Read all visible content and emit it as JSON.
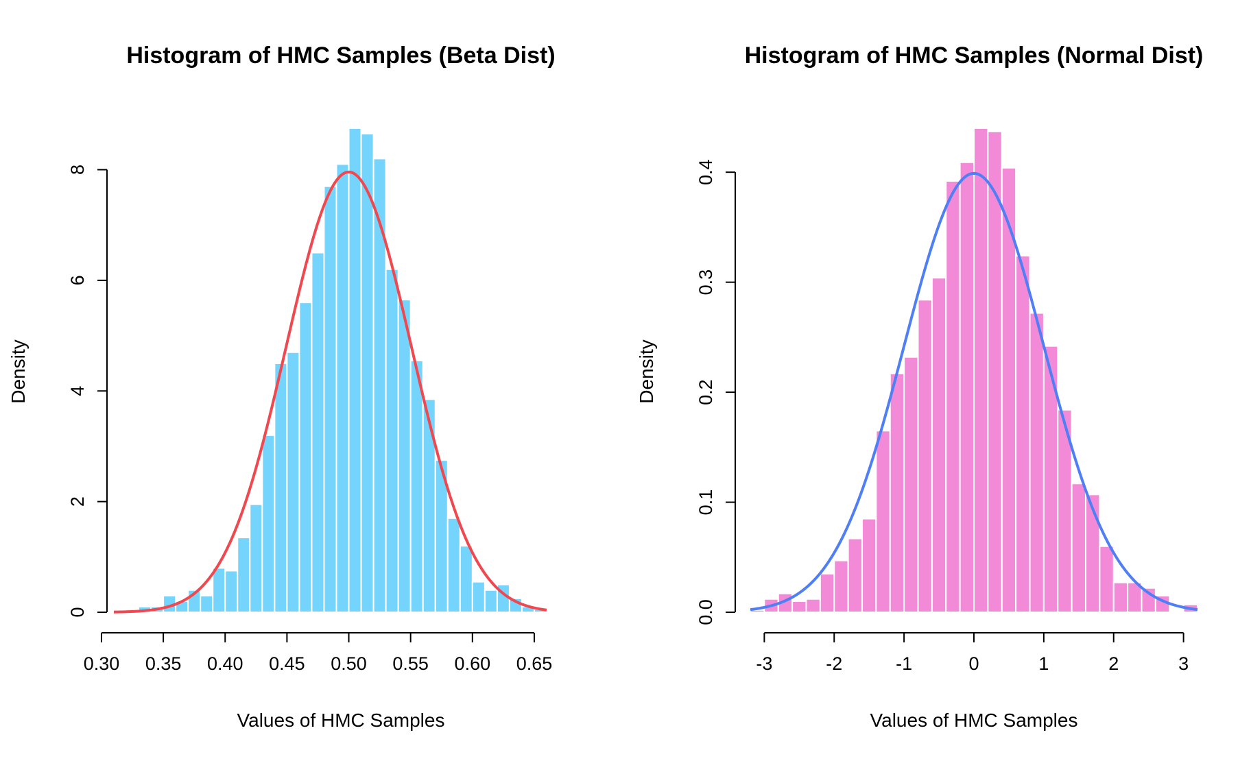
{
  "chart_data": [
    {
      "type": "bar",
      "title": "Histogram of HMC Samples (Beta Dist)",
      "xlabel": "Values of HMC Samples",
      "ylabel": "Density",
      "xlim": [
        0.31,
        0.66
      ],
      "ylim": [
        0,
        8.75
      ],
      "xticks": [
        0.3,
        0.35,
        0.4,
        0.45,
        0.5,
        0.55,
        0.6,
        0.65
      ],
      "xtick_labels": [
        "0.30",
        "0.35",
        "0.40",
        "0.45",
        "0.50",
        "0.55",
        "0.60",
        "0.65"
      ],
      "yticks": [
        0,
        2,
        4,
        6,
        8
      ],
      "ytick_labels": [
        "0",
        "2",
        "4",
        "6",
        "8"
      ],
      "bin_width": 0.01,
      "bin_starts": [
        0.33,
        0.34,
        0.35,
        0.36,
        0.37,
        0.38,
        0.39,
        0.4,
        0.41,
        0.42,
        0.43,
        0.44,
        0.45,
        0.46,
        0.47,
        0.48,
        0.49,
        0.5,
        0.51,
        0.52,
        0.53,
        0.54,
        0.55,
        0.56,
        0.57,
        0.58,
        0.59,
        0.6,
        0.61,
        0.62,
        0.63,
        0.64,
        0.65
      ],
      "values": [
        0.1,
        0.1,
        0.3,
        0.2,
        0.4,
        0.3,
        0.8,
        0.75,
        1.35,
        1.95,
        3.2,
        4.5,
        4.7,
        5.6,
        6.5,
        7.7,
        8.1,
        8.75,
        8.65,
        8.2,
        6.2,
        5.65,
        4.55,
        3.85,
        2.75,
        1.7,
        1.2,
        0.55,
        0.4,
        0.5,
        0.25,
        0.1,
        0.05
      ],
      "bar_color": "#74d4fc",
      "curve": {
        "name": "Beta density",
        "color": "#f0484e",
        "distribution": "beta",
        "alpha": 50,
        "beta": 50,
        "x_range": [
          0.31,
          0.66
        ]
      },
      "grid": false
    },
    {
      "type": "bar",
      "title": "Histogram of HMC Samples (Normal Dist)",
      "xlabel": "Values of HMC Samples",
      "ylabel": "Density",
      "xlim": [
        -3.2,
        3.2
      ],
      "ylim": [
        0,
        0.44
      ],
      "xticks": [
        -3,
        -2,
        -1,
        0,
        1,
        2,
        3
      ],
      "xtick_labels": [
        "-3",
        "-2",
        "-1",
        "0",
        "1",
        "2",
        "3"
      ],
      "yticks": [
        0,
        0.1,
        0.2,
        0.3,
        0.4
      ],
      "ytick_labels": [
        "0.0",
        "0.1",
        "0.2",
        "0.3",
        "0.4"
      ],
      "bin_width": 0.2,
      "bin_starts": [
        -3.2,
        -3.0,
        -2.8,
        -2.6,
        -2.4,
        -2.2,
        -2.0,
        -1.8,
        -1.6,
        -1.4,
        -1.2,
        -1.0,
        -0.8,
        -0.6,
        -0.4,
        -0.2,
        0.0,
        0.2,
        0.4,
        0.6,
        0.8,
        1.0,
        1.2,
        1.4,
        1.6,
        1.8,
        2.0,
        2.2,
        2.4,
        2.6,
        2.8,
        3.0
      ],
      "values": [
        0.002,
        0.012,
        0.017,
        0.01,
        0.012,
        0.035,
        0.047,
        0.067,
        0.085,
        0.165,
        0.217,
        0.232,
        0.284,
        0.304,
        0.392,
        0.409,
        0.44,
        0.437,
        0.404,
        0.324,
        0.272,
        0.242,
        0.184,
        0.117,
        0.107,
        0.06,
        0.027,
        0.027,
        0.022,
        0.015,
        0.0,
        0.007
      ],
      "bar_color": "#f28ad8",
      "curve": {
        "name": "Normal density",
        "color": "#4f7ff5",
        "distribution": "normal",
        "mean": 0,
        "sd": 1,
        "x_range": [
          -3.2,
          3.2
        ]
      },
      "grid": false
    }
  ]
}
